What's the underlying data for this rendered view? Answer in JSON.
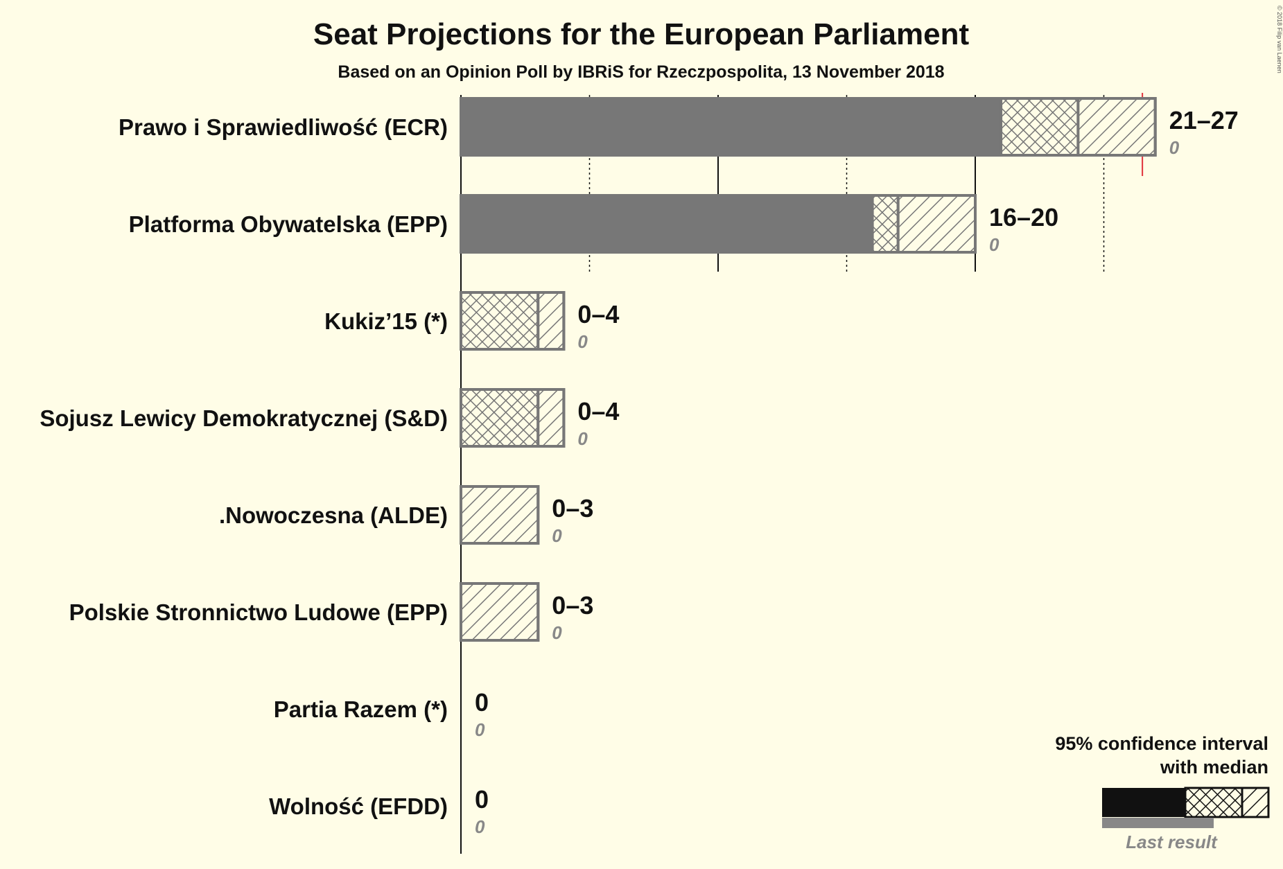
{
  "chart_data": {
    "type": "bar",
    "title": "Seat Projections for the European Parliament",
    "subtitle": "Based on an Opinion Poll by IBRiS for Rzeczpospolita, 13 November 2018",
    "copyright": "© 2018 Filip van Laenen",
    "xlim": [
      0,
      27
    ],
    "gridlines": [
      5,
      10,
      15,
      20,
      25
    ],
    "majority_line": 26.5,
    "categories": [
      "Prawo i Sprawiedliwość (ECR)",
      "Platforma Obywatelska (EPP)",
      "Kukiz’15 (*)",
      "Sojusz Lewicy Demokratycznej (S&D)",
      ".Nowoczesna (ALDE)",
      "Polskie Stronnictwo Ludowe (EPP)",
      "Partia Razem (*)",
      "Wolność (EFDD)"
    ],
    "series": [
      {
        "values": [
          {
            "low": 21,
            "median": 24,
            "high": 27,
            "range_label": "21–27",
            "last_result": 0,
            "last_label": "0"
          },
          {
            "low": 16,
            "median": 17,
            "high": 20,
            "range_label": "16–20",
            "last_result": 0,
            "last_label": "0"
          },
          {
            "low": 0,
            "median": 3,
            "high": 4,
            "range_label": "0–4",
            "last_result": 0,
            "last_label": "0"
          },
          {
            "low": 0,
            "median": 3,
            "high": 4,
            "range_label": "0–4",
            "last_result": 0,
            "last_label": "0"
          },
          {
            "low": 0,
            "median": 0,
            "high": 3,
            "range_label": "0–3",
            "last_result": 0,
            "last_label": "0"
          },
          {
            "low": 0,
            "median": 0,
            "high": 3,
            "range_label": "0–3",
            "last_result": 0,
            "last_label": "0"
          },
          {
            "low": 0,
            "median": 0,
            "high": 0,
            "range_label": "0",
            "last_result": 0,
            "last_label": "0"
          },
          {
            "low": 0,
            "median": 0,
            "high": 0,
            "range_label": "0",
            "last_result": 0,
            "last_label": "0"
          }
        ]
      }
    ],
    "legend": {
      "line1": "95% confidence interval",
      "line2": "with median",
      "last_result": "Last result",
      "position": "bottom-right"
    },
    "colors": {
      "background": "#fffde7",
      "bar_solid": "#777777",
      "bar_border": "#777777",
      "hatch": "#777777",
      "legend_solid": "#111111",
      "majority": "#e0303a",
      "last_result_bar": "#888888"
    }
  }
}
